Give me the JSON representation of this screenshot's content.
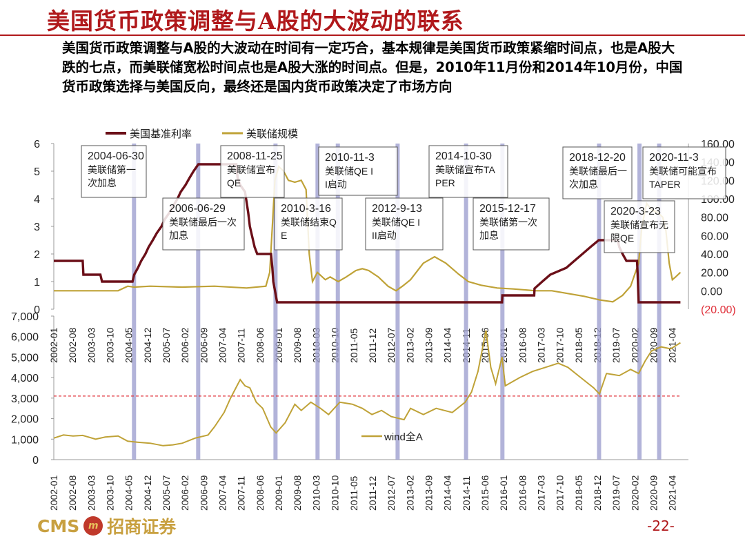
{
  "slide": {
    "title": "美国货币政策调整与A股的大波动的联系",
    "subtitle": "美国货币政策调整与A股的大波动在时间有一定巧合，基本规律是美国货币政策紧缩时间点，也是A股大跌的七点，而美联储宽松时间点也是A股大涨的时间点。但是，2010年11月份和2014年10月份，中国货币政策选择与美国反向，最终还是国内货币政策决定了市场方向",
    "page_number": "-22-",
    "logo_text": "CMS",
    "logo_mark": "m",
    "company_name": "招商证券"
  },
  "colors": {
    "title_red": "#b0181b",
    "fed_rate": "#6b0f18",
    "fed_balance": "#bfa237",
    "wind_a": "#bfa237",
    "event_band": "#9fa0cf",
    "threshold_line": "#e0303a",
    "negative_tick": "#e0303a"
  },
  "chart_data": [
    {
      "type": "line",
      "legend": [
        "美国基准利率",
        "美联储规模"
      ],
      "legend_placement": "top-left",
      "y_left_ticks": [
        "0",
        "1",
        "2",
        "3",
        "4",
        "5",
        "6"
      ],
      "y_left_lim": [
        0,
        6
      ],
      "y_right_ticks": [
        "(20.00)",
        "0.00",
        "20.00",
        "40.00",
        "60.00",
        "80.00",
        "100.00",
        "120.00",
        "140.00",
        "160.00"
      ],
      "y_right_lim": [
        -20,
        160
      ],
      "series": [
        {
          "name": "美国基准利率",
          "axis": "left",
          "points": [
            [
              2002.0,
              1.75
            ],
            [
              2002.9,
              1.75
            ],
            [
              2002.92,
              1.25
            ],
            [
              2003.45,
              1.25
            ],
            [
              2003.5,
              1.0
            ],
            [
              2004.45,
              1.0
            ],
            [
              2004.5,
              1.25
            ],
            [
              2004.62,
              1.5
            ],
            [
              2004.72,
              1.75
            ],
            [
              2004.85,
              2.0
            ],
            [
              2004.95,
              2.25
            ],
            [
              2005.08,
              2.5
            ],
            [
              2005.2,
              2.75
            ],
            [
              2005.35,
              3.0
            ],
            [
              2005.45,
              3.25
            ],
            [
              2005.6,
              3.5
            ],
            [
              2005.72,
              3.75
            ],
            [
              2005.85,
              4.0
            ],
            [
              2005.95,
              4.25
            ],
            [
              2006.1,
              4.5
            ],
            [
              2006.22,
              4.75
            ],
            [
              2006.35,
              5.0
            ],
            [
              2006.5,
              5.25
            ],
            [
              2007.68,
              5.25
            ],
            [
              2007.72,
              4.75
            ],
            [
              2007.8,
              4.5
            ],
            [
              2007.95,
              4.25
            ],
            [
              2008.05,
              3.5
            ],
            [
              2008.1,
              3.0
            ],
            [
              2008.25,
              2.25
            ],
            [
              2008.33,
              2.0
            ],
            [
              2008.76,
              2.0
            ],
            [
              2008.8,
              1.5
            ],
            [
              2008.83,
              1.0
            ],
            [
              2008.95,
              0.25
            ],
            [
              2015.95,
              0.25
            ],
            [
              2015.96,
              0.5
            ],
            [
              2016.95,
              0.5
            ],
            [
              2016.96,
              0.75
            ],
            [
              2017.2,
              1.0
            ],
            [
              2017.45,
              1.25
            ],
            [
              2017.95,
              1.5
            ],
            [
              2018.2,
              1.75
            ],
            [
              2018.45,
              2.0
            ],
            [
              2018.7,
              2.25
            ],
            [
              2018.96,
              2.5
            ],
            [
              2019.55,
              2.5
            ],
            [
              2019.6,
              2.25
            ],
            [
              2019.7,
              2.0
            ],
            [
              2019.82,
              1.75
            ],
            [
              2020.15,
              1.75
            ],
            [
              2020.17,
              1.25
            ],
            [
              2020.2,
              0.25
            ],
            [
              2021.5,
              0.25
            ]
          ]
        },
        {
          "name": "美联储规模",
          "axis": "right",
          "points": [
            [
              2002.0,
              0.0
            ],
            [
              2003.0,
              0.0
            ],
            [
              2004.0,
              0.0
            ],
            [
              2004.3,
              5.0
            ],
            [
              2004.5,
              4.0
            ],
            [
              2005.0,
              5.0
            ],
            [
              2006.0,
              4.0
            ],
            [
              2007.0,
              5.0
            ],
            [
              2008.0,
              3.0
            ],
            [
              2008.6,
              5.0
            ],
            [
              2008.72,
              20.0
            ],
            [
              2008.8,
              70.0
            ],
            [
              2008.88,
              120.0
            ],
            [
              2009.0,
              135.0
            ],
            [
              2009.15,
              130.0
            ],
            [
              2009.3,
              120.0
            ],
            [
              2009.5,
              118.0
            ],
            [
              2009.7,
              120.0
            ],
            [
              2009.85,
              110.0
            ],
            [
              2009.95,
              40.0
            ],
            [
              2010.05,
              10.0
            ],
            [
              2010.2,
              20.0
            ],
            [
              2010.45,
              12.0
            ],
            [
              2010.6,
              15.0
            ],
            [
              2010.85,
              10.0
            ],
            [
              2011.1,
              15.0
            ],
            [
              2011.4,
              22.0
            ],
            [
              2011.6,
              24.0
            ],
            [
              2011.8,
              22.0
            ],
            [
              2012.1,
              15.0
            ],
            [
              2012.4,
              5.0
            ],
            [
              2012.65,
              0.0
            ],
            [
              2012.85,
              5.0
            ],
            [
              2013.1,
              12.0
            ],
            [
              2013.5,
              30.0
            ],
            [
              2013.85,
              37.0
            ],
            [
              2014.2,
              30.0
            ],
            [
              2014.6,
              18.0
            ],
            [
              2014.9,
              10.0
            ],
            [
              2015.3,
              6.0
            ],
            [
              2015.8,
              3.0
            ],
            [
              2016.3,
              2.0
            ],
            [
              2017.0,
              0.0
            ],
            [
              2017.5,
              0.0
            ],
            [
              2018.0,
              -3.0
            ],
            [
              2018.5,
              -6.0
            ],
            [
              2019.0,
              -10.0
            ],
            [
              2019.4,
              -12.0
            ],
            [
              2019.7,
              -5.0
            ],
            [
              2019.95,
              5.0
            ],
            [
              2020.2,
              30.0
            ],
            [
              2020.3,
              70.0
            ],
            [
              2020.45,
              95.0
            ],
            [
              2020.6,
              88.0
            ],
            [
              2020.8,
              85.0
            ],
            [
              2020.95,
              80.0
            ],
            [
              2021.05,
              65.0
            ],
            [
              2021.15,
              30.0
            ],
            [
              2021.25,
              12.0
            ],
            [
              2021.35,
              15.0
            ],
            [
              2021.5,
              20.0
            ]
          ]
        }
      ],
      "annotations": [
        {
          "date": "2004-06-30",
          "text": "美联储第一次加息"
        },
        {
          "date": "2006-06-29",
          "text": "美联储最后一次加息"
        },
        {
          "date": "2008-11-25",
          "text": "美联储宣布QE"
        },
        {
          "date": "2010-3-16",
          "text": "美联储结束QE"
        },
        {
          "date": "2010-11-3",
          "text": "美联储QE II启动"
        },
        {
          "date": "2012-9-13",
          "text": "美联储QE III启动"
        },
        {
          "date": "2014-10-30",
          "text": "美联储宣布TAPER"
        },
        {
          "date": "2015-12-17",
          "text": "美联储第一次加息"
        },
        {
          "date": "2018-12-20",
          "text": "美联储最后一次加息"
        },
        {
          "date": "2020-3-23",
          "text": "美联储宣布无限QE"
        },
        {
          "date": "2020-11-3",
          "text": "美联储可能宣布TAPER"
        }
      ]
    },
    {
      "type": "line",
      "legend": [
        "wind全A"
      ],
      "legend_placement": "bottom-center",
      "y_ticks": [
        "0",
        "1,000",
        "2,000",
        "3,000",
        "4,000",
        "5,000",
        "6,000",
        "7,000"
      ],
      "ylim": [
        0,
        7000
      ],
      "threshold": 3100,
      "x_tick_labels": [
        "2002-01",
        "2002-08",
        "2003-03",
        "2003-10",
        "2004-05",
        "2004-12",
        "2005-07",
        "2006-02",
        "2006-09",
        "2007-04",
        "2007-11",
        "2008-06",
        "2009-01",
        "2009-08",
        "2010-03",
        "2010-10",
        "2011-05",
        "2011-12",
        "2012-07",
        "2013-02",
        "2013-09",
        "2014-04",
        "2014-11",
        "2015-06",
        "2016-01",
        "2016-08",
        "2017-03",
        "2017-10",
        "2018-05",
        "2018-12",
        "2019-07",
        "2020-02",
        "2020-09",
        "2021-04"
      ],
      "series": [
        {
          "name": "wind全A",
          "points": [
            [
              2002.0,
              1050
            ],
            [
              2002.3,
              1200
            ],
            [
              2002.6,
              1150
            ],
            [
              2002.9,
              1180
            ],
            [
              2003.3,
              1000
            ],
            [
              2003.6,
              1100
            ],
            [
              2004.0,
              1150
            ],
            [
              2004.3,
              900
            ],
            [
              2004.6,
              850
            ],
            [
              2005.0,
              800
            ],
            [
              2005.4,
              680
            ],
            [
              2005.7,
              720
            ],
            [
              2006.0,
              800
            ],
            [
              2006.4,
              1050
            ],
            [
              2006.8,
              1200
            ],
            [
              2007.0,
              1600
            ],
            [
              2007.3,
              2300
            ],
            [
              2007.5,
              3000
            ],
            [
              2007.8,
              3900
            ],
            [
              2007.95,
              3600
            ],
            [
              2008.1,
              3500
            ],
            [
              2008.3,
              2800
            ],
            [
              2008.5,
              2500
            ],
            [
              2008.75,
              1600
            ],
            [
              2008.92,
              1300
            ],
            [
              2009.2,
              1800
            ],
            [
              2009.5,
              2700
            ],
            [
              2009.7,
              2400
            ],
            [
              2010.0,
              2800
            ],
            [
              2010.3,
              2500
            ],
            [
              2010.55,
              2200
            ],
            [
              2010.9,
              2800
            ],
            [
              2011.3,
              2700
            ],
            [
              2011.6,
              2500
            ],
            [
              2011.9,
              2200
            ],
            [
              2012.2,
              2400
            ],
            [
              2012.5,
              2100
            ],
            [
              2012.9,
              1950
            ],
            [
              2013.1,
              2500
            ],
            [
              2013.5,
              2200
            ],
            [
              2013.9,
              2500
            ],
            [
              2014.4,
              2300
            ],
            [
              2014.8,
              2800
            ],
            [
              2015.0,
              3300
            ],
            [
              2015.2,
              4300
            ],
            [
              2015.45,
              6300
            ],
            [
              2015.6,
              4500
            ],
            [
              2015.75,
              3700
            ],
            [
              2015.95,
              5000
            ],
            [
              2016.05,
              3600
            ],
            [
              2016.5,
              4000
            ],
            [
              2016.9,
              4300
            ],
            [
              2017.3,
              4500
            ],
            [
              2017.7,
              4700
            ],
            [
              2018.0,
              4500
            ],
            [
              2018.4,
              4000
            ],
            [
              2018.8,
              3500
            ],
            [
              2018.98,
              3200
            ],
            [
              2019.2,
              4200
            ],
            [
              2019.6,
              4100
            ],
            [
              2019.95,
              4400
            ],
            [
              2020.2,
              4200
            ],
            [
              2020.4,
              4800
            ],
            [
              2020.6,
              5300
            ],
            [
              2020.9,
              5500
            ],
            [
              2021.2,
              5400
            ],
            [
              2021.5,
              5700
            ]
          ]
        }
      ]
    }
  ]
}
